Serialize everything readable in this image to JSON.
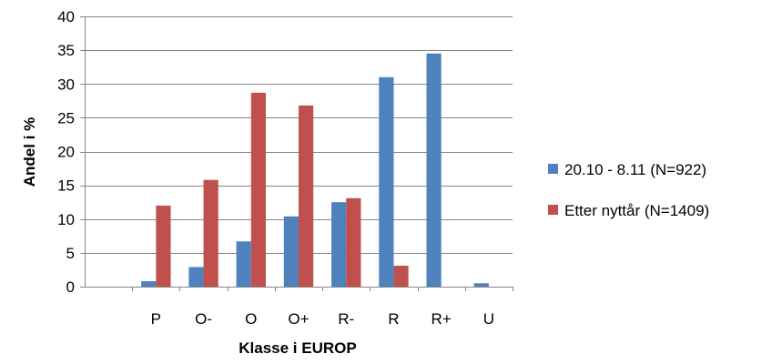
{
  "chart_data": {
    "type": "bar",
    "title": "",
    "xlabel": "Klasse i EUROP",
    "ylabel": "Andel i %",
    "ylim": [
      0,
      40
    ],
    "yticks": [
      0,
      5,
      10,
      15,
      20,
      25,
      30,
      35,
      40
    ],
    "grid": true,
    "legend_position": "right",
    "categories": [
      "",
      "P",
      "O-",
      "O",
      "O+",
      "R-",
      "R",
      "R+",
      "U"
    ],
    "series": [
      {
        "name": "20.10 - 8.11 (N=922)",
        "color": "#4F81BD",
        "values": [
          0,
          0.8,
          2.9,
          6.7,
          10.4,
          12.5,
          31.0,
          34.5,
          0.5
        ]
      },
      {
        "name": "Etter nyttår (N=1409)",
        "color": "#C0504D",
        "values": [
          0,
          12.0,
          15.8,
          28.7,
          26.8,
          13.1,
          3.1,
          0,
          0
        ]
      }
    ]
  }
}
